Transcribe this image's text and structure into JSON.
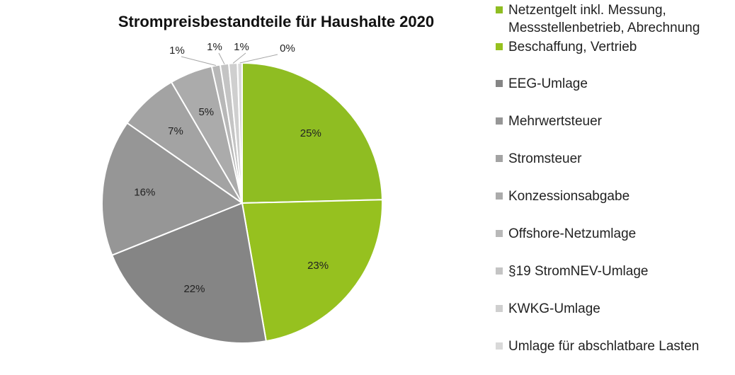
{
  "chart_data": {
    "type": "pie",
    "title": "Strompreisbestandteile für Haushalte 2020",
    "slices": [
      {
        "name": "Netzentgelt inkl. Messung, Messstellenbetrieb, Abrechnung",
        "value": 25,
        "label": "25%",
        "color": "#8fbd22"
      },
      {
        "name": "Beschaffung, Vertrieb",
        "value": 23,
        "label": "23%",
        "color": "#96c11f"
      },
      {
        "name": "EEG-Umlage",
        "value": 22,
        "label": "22%",
        "color": "#858585"
      },
      {
        "name": "Mehrwertsteuer",
        "value": 16,
        "label": "16%",
        "color": "#969696"
      },
      {
        "name": "Stromsteuer",
        "value": 7,
        "label": "7%",
        "color": "#a3a3a3"
      },
      {
        "name": "Konzessionsabgabe",
        "value": 5,
        "label": "5%",
        "color": "#ababab"
      },
      {
        "name": "Offshore-Netzumlage",
        "value": 1,
        "label": "1%",
        "color": "#b8b8b8"
      },
      {
        "name": "§19 StromNEV-Umlage",
        "value": 1,
        "label": "1%",
        "color": "#c4c4c4"
      },
      {
        "name": "KWKG-Umlage",
        "value": 1,
        "label": "1%",
        "color": "#cfcfcf"
      },
      {
        "name": "Umlage für abschlatbare Lasten",
        "value": 0,
        "label": "0%",
        "color": "#d9d9d9"
      }
    ],
    "legend_position": "right"
  }
}
